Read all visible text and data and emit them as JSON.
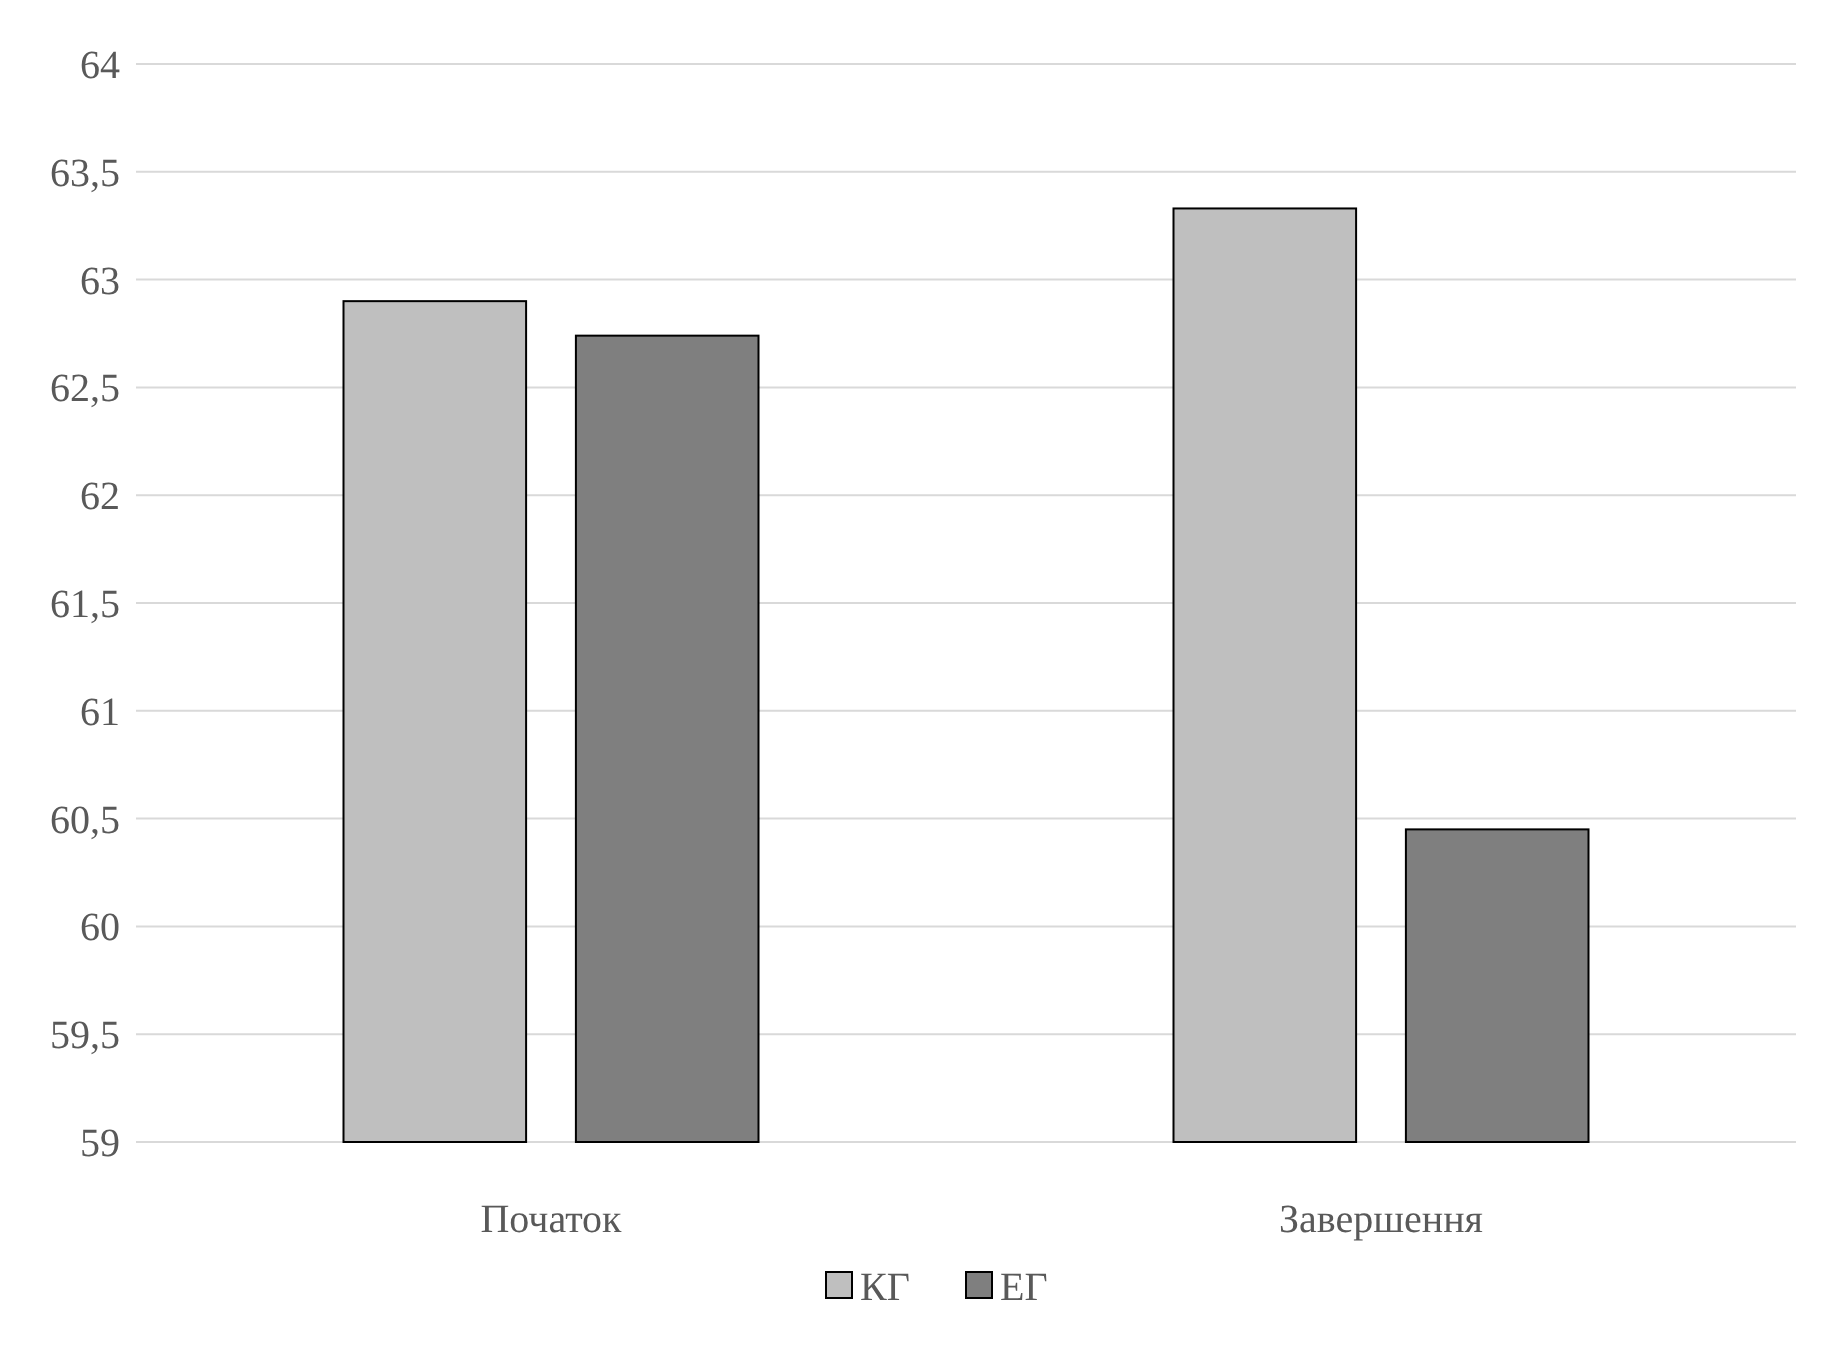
{
  "chart_data": {
    "type": "bar",
    "categories": [
      "Початок",
      "Завершення"
    ],
    "series": [
      {
        "name": "КГ",
        "color": "#bfbfbf",
        "values": [
          62.9,
          63.33
        ]
      },
      {
        "name": "ЕГ",
        "color": "#7f7f7f",
        "values": [
          62.74,
          60.45
        ]
      }
    ],
    "ylim": [
      59,
      64
    ],
    "yticks": [
      59,
      {
        "value": 59.5,
        "label": "59,5"
      },
      60,
      {
        "value": 60.5,
        "label": "60,5"
      },
      61,
      {
        "value": 61.5,
        "label": "61,5"
      },
      62,
      {
        "value": 62.5,
        "label": "62,5"
      },
      63,
      {
        "value": 63.5,
        "label": "63,5"
      },
      64
    ],
    "grid": "y",
    "legend": "bottom"
  }
}
